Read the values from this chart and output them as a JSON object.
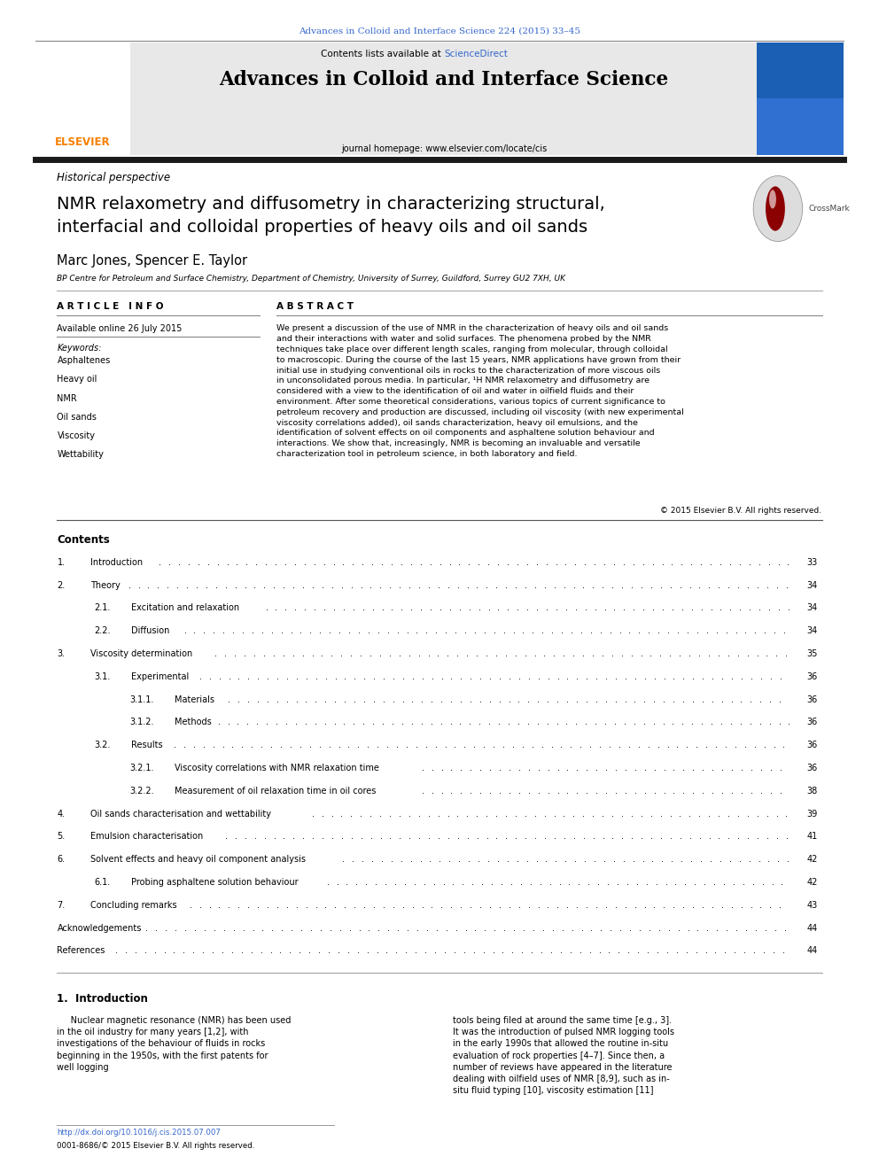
{
  "page_width": 9.92,
  "page_height": 13.23,
  "bg_color": "#ffffff",
  "top_citation": "Advances in Colloid and Interface Science 224 (2015) 33–45",
  "top_citation_color": "#3366cc",
  "header_bg": "#e8e8e8",
  "header_contents_text": "Contents lists available at ",
  "header_sciencedirect": "ScienceDirect",
  "header_sciencedirect_color": "#3366cc",
  "journal_title": "Advances in Colloid and Interface Science",
  "journal_homepage": "journal homepage: www.elsevier.com/locate/cis",
  "elsevier_color": "#f77f00",
  "thick_bar_color": "#1a1a1a",
  "article_type": "Historical perspective",
  "paper_title_line1": "NMR relaxometry and diffusometry in characterizing structural,",
  "paper_title_line2": "interfacial and colloidal properties of heavy oils and oil sands",
  "authors": "Marc Jones, Spencer E. Taylor",
  "affiliation": "BP Centre for Petroleum and Surface Chemistry, Department of Chemistry, University of Surrey, Guildford, Surrey GU2 7XH, UK",
  "article_info_header": "A R T I C L E   I N F O",
  "abstract_header": "A B S T R A C T",
  "available_online": "Available online 26 July 2015",
  "keywords_label": "Keywords:",
  "keywords": [
    "Asphaltenes",
    "Heavy oil",
    "NMR",
    "Oil sands",
    "Viscosity",
    "Wettability"
  ],
  "abstract_text": "We present a discussion of the use of NMR in the characterization of heavy oils and oil sands and their interactions with water and solid surfaces. The phenomena probed by the NMR techniques take place over different length scales, ranging from molecular, through colloidal to macroscopic. During the course of the last 15 years, NMR applications have grown from their initial use in studying conventional oils in rocks to the characterization of more viscous oils in unconsolidated porous media. In particular, ¹H NMR relaxometry and diffusometry are considered with a view to the identification of oil and water in oilfield fluids and their environment. After some theoretical considerations, various topics of current significance to petroleum recovery and production are discussed, including oil viscosity (with new experimental viscosity correlations added), oil sands characterization, heavy oil emulsions, and the identification of solvent effects on oil components and asphaltene solution behaviour and interactions. We show that, increasingly, NMR is becoming an invaluable and versatile characterization tool in petroleum science, in both laboratory and field.",
  "copyright": "© 2015 Elsevier B.V. All rights reserved.",
  "contents_title": "Contents",
  "toc_entries": [
    {
      "num": "1.",
      "indent": 0,
      "title": "Introduction",
      "page": "33"
    },
    {
      "num": "2.",
      "indent": 0,
      "title": "Theory",
      "page": "34"
    },
    {
      "num": "2.1.",
      "indent": 1,
      "title": "Excitation and relaxation",
      "page": "34"
    },
    {
      "num": "2.2.",
      "indent": 1,
      "title": "Diffusion",
      "page": "34"
    },
    {
      "num": "3.",
      "indent": 0,
      "title": "Viscosity determination",
      "page": "35"
    },
    {
      "num": "3.1.",
      "indent": 1,
      "title": "Experimental",
      "page": "36"
    },
    {
      "num": "3.1.1.",
      "indent": 2,
      "title": "Materials",
      "page": "36"
    },
    {
      "num": "3.1.2.",
      "indent": 2,
      "title": "Methods",
      "page": "36"
    },
    {
      "num": "3.2.",
      "indent": 1,
      "title": "Results",
      "page": "36"
    },
    {
      "num": "3.2.1.",
      "indent": 2,
      "title": "Viscosity correlations with NMR relaxation time",
      "page": "36"
    },
    {
      "num": "3.2.2.",
      "indent": 2,
      "title": "Measurement of oil relaxation time in oil cores",
      "page": "38"
    },
    {
      "num": "4.",
      "indent": 0,
      "title": "Oil sands characterisation and wettability",
      "page": "39"
    },
    {
      "num": "5.",
      "indent": 0,
      "title": "Emulsion characterisation",
      "page": "41"
    },
    {
      "num": "6.",
      "indent": 0,
      "title": "Solvent effects and heavy oil component analysis",
      "page": "42"
    },
    {
      "num": "6.1.",
      "indent": 1,
      "title": "Probing asphaltene solution behaviour",
      "page": "42"
    },
    {
      "num": "7.",
      "indent": 0,
      "title": "Concluding remarks",
      "page": "43"
    },
    {
      "num": "",
      "indent": 0,
      "title": "Acknowledgements",
      "page": "44"
    },
    {
      "num": "",
      "indent": 0,
      "title": "References",
      "page": "44"
    }
  ],
  "intro_section": "1.  Introduction",
  "intro_text_left": "     Nuclear magnetic resonance (NMR) has been used in the oil industry for many years [1,2], with investigations of the behaviour of fluids in rocks beginning in the 1950s, with the first patents for well logging",
  "intro_text_right": "tools being filed at around the same time [e.g., 3]. It was the introduction of pulsed NMR logging tools in the early 1990s that allowed the routine in-situ evaluation of rock properties [4–7]. Since then, a number of reviews have appeared in the literature dealing with oilfield uses of NMR [8,9], such as in-situ fluid typing [10], viscosity estimation [11]",
  "doi_text": "http://dx.doi.org/10.1016/j.cis.2015.07.007",
  "doi_color": "#3366cc",
  "issn_text": "0001-8686/© 2015 Elsevier B.V. All rights reserved."
}
